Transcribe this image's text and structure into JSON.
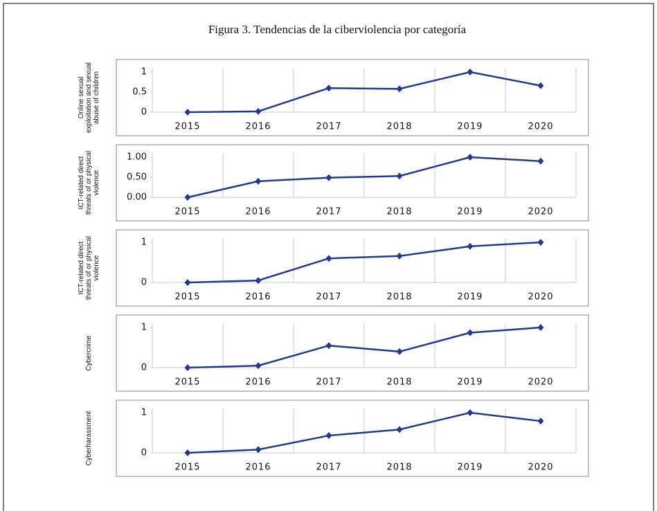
{
  "title": "Figura 3. Tendencias de la ciberviolencia por categoría",
  "chart_data": [
    {
      "type": "line",
      "ylabel": "Online sexual exploitation and sexual abuse of children",
      "categories": [
        "2015",
        "2016",
        "2017",
        "2018",
        "2019",
        "2020"
      ],
      "values": [
        0,
        0.02,
        0.6,
        0.58,
        1,
        0.66
      ],
      "color": "#1f3a93",
      "ylim": [
        0,
        1
      ],
      "yticks": [
        0,
        0.5,
        1
      ],
      "grid": true
    },
    {
      "type": "line",
      "ylabel": "ICT-related direct threats of or physical violence",
      "categories": [
        "2015",
        "2016",
        "2017",
        "2018",
        "2019",
        "2020"
      ],
      "values": [
        0,
        0.4,
        0.49,
        0.53,
        1,
        0.9
      ],
      "color": "#1f3a93",
      "ylim": [
        0,
        1
      ],
      "yticks": [
        {
          "value": 0,
          "label": "0.00"
        },
        {
          "value": 0.5,
          "label": "0.50"
        },
        {
          "value": 1,
          "label": "1.00"
        }
      ],
      "grid": true
    },
    {
      "type": "line",
      "ylabel": "ICT-related direct threats of or physical violence",
      "categories": [
        "2015",
        "2016",
        "2017",
        "2018",
        "2019",
        "2020"
      ],
      "values": [
        0,
        0.05,
        0.6,
        0.66,
        0.9,
        1
      ],
      "color": "#1f3a93",
      "ylim": [
        0,
        1
      ],
      "yticks": [
        0,
        1
      ],
      "grid": true
    },
    {
      "type": "line",
      "ylabel": "Cybercrime",
      "categories": [
        "2015",
        "2016",
        "2017",
        "2018",
        "2019",
        "2020"
      ],
      "values": [
        0,
        0.05,
        0.55,
        0.4,
        0.87,
        1
      ],
      "color": "#1f3a93",
      "ylim": [
        0,
        1
      ],
      "yticks": [
        0,
        1
      ],
      "grid": true
    },
    {
      "type": "line",
      "ylabel": "Cyberharassment",
      "categories": [
        "2015",
        "2016",
        "2017",
        "2018",
        "2019",
        "2020"
      ],
      "values": [
        0,
        0.08,
        0.43,
        0.58,
        1,
        0.79
      ],
      "color": "#1f3a93",
      "ylim": [
        0,
        1
      ],
      "yticks": [
        0,
        1
      ],
      "grid": true
    }
  ]
}
